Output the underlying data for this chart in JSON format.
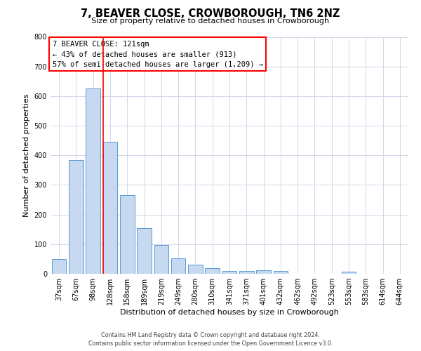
{
  "title": "7, BEAVER CLOSE, CROWBOROUGH, TN6 2NZ",
  "subtitle": "Size of property relative to detached houses in Crowborough",
  "xlabel": "Distribution of detached houses by size in Crowborough",
  "ylabel": "Number of detached properties",
  "bar_labels": [
    "37sqm",
    "67sqm",
    "98sqm",
    "128sqm",
    "158sqm",
    "189sqm",
    "219sqm",
    "249sqm",
    "280sqm",
    "310sqm",
    "341sqm",
    "371sqm",
    "401sqm",
    "432sqm",
    "462sqm",
    "492sqm",
    "523sqm",
    "553sqm",
    "583sqm",
    "614sqm",
    "644sqm"
  ],
  "bar_values": [
    50,
    385,
    625,
    445,
    265,
    155,
    97,
    52,
    30,
    18,
    10,
    10,
    12,
    10,
    0,
    0,
    0,
    7,
    0,
    0,
    0
  ],
  "bar_color": "#c6d9f0",
  "bar_edge_color": "#5b9bd5",
  "vline_color": "red",
  "vline_pos": 2.575,
  "ylim": [
    0,
    800
  ],
  "yticks": [
    0,
    100,
    200,
    300,
    400,
    500,
    600,
    700,
    800
  ],
  "annotation_title": "7 BEAVER CLOSE: 121sqm",
  "annotation_line1": "← 43% of detached houses are smaller (913)",
  "annotation_line2": "57% of semi-detached houses are larger (1,209) →",
  "footer_line1": "Contains HM Land Registry data © Crown copyright and database right 2024.",
  "footer_line2": "Contains public sector information licensed under the Open Government Licence v3.0.",
  "bg_color": "#ffffff",
  "grid_color": "#d0d8e8",
  "fig_bg": "#ffffff",
  "title_fontsize": 10.5,
  "subtitle_fontsize": 8,
  "axis_label_fontsize": 8,
  "tick_fontsize": 7,
  "annotation_fontsize": 7.5,
  "footer_fontsize": 5.8
}
